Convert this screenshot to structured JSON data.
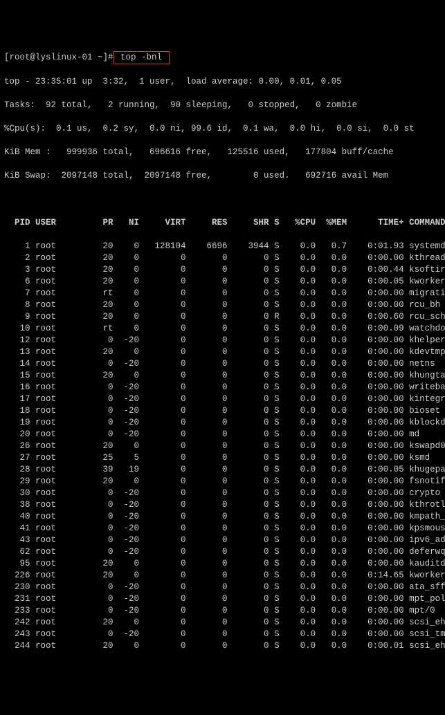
{
  "colors": {
    "bg": "#000000",
    "fg": "#cccccc",
    "highlight_border": "#ff2a2a",
    "inverse_bg": "#cccccc",
    "inverse_fg": "#000000"
  },
  "prompt": {
    "text": "[root@lyslinux-01 ~]#",
    "command": " top -bnl "
  },
  "summary": {
    "line1": "top - 23:35:01 up  3:32,  1 user,  load average: 0.00, 0.01, 0.05",
    "line2": "Tasks:  92 total,   2 running,  90 sleeping,   0 stopped,   0 zombie",
    "line3": "%Cpu(s):  0.1 us,  0.2 sy,  0.0 ni, 99.6 id,  0.1 wa,  0.0 hi,  0.0 si,  0.0 st",
    "line4": "KiB Mem :   999936 total,   696616 free,   125516 used,   177804 buff/cache",
    "line5": "KiB Swap:  2097148 total,  2097148 free,        0 used.   692716 avail Mem "
  },
  "columns": {
    "labels": [
      "PID",
      "USER",
      "PR",
      "NI",
      "VIRT",
      "RES",
      "SHR",
      "S",
      "%CPU",
      "%MEM",
      "TIME+",
      "COMMAND"
    ],
    "widths": [
      5,
      9,
      5,
      4,
      8,
      7,
      7,
      2,
      5,
      5,
      10,
      1
    ],
    "aligns": [
      "r",
      "l",
      "r",
      "r",
      "r",
      "r",
      "r",
      "l",
      "r",
      "r",
      "r",
      "l"
    ]
  },
  "processes": [
    {
      "pid": "1",
      "user": "root",
      "pr": "20",
      "ni": "0",
      "virt": "128104",
      "res": "6696",
      "shr": "3944",
      "s": "S",
      "cpu": "0.0",
      "mem": "0.7",
      "time": "0:01.93",
      "cmd": "systemd"
    },
    {
      "pid": "2",
      "user": "root",
      "pr": "20",
      "ni": "0",
      "virt": "0",
      "res": "0",
      "shr": "0",
      "s": "S",
      "cpu": "0.0",
      "mem": "0.0",
      "time": "0:00.00",
      "cmd": "kthreadd"
    },
    {
      "pid": "3",
      "user": "root",
      "pr": "20",
      "ni": "0",
      "virt": "0",
      "res": "0",
      "shr": "0",
      "s": "S",
      "cpu": "0.0",
      "mem": "0.0",
      "time": "0:00.44",
      "cmd": "ksoftirqd/0"
    },
    {
      "pid": "6",
      "user": "root",
      "pr": "20",
      "ni": "0",
      "virt": "0",
      "res": "0",
      "shr": "0",
      "s": "S",
      "cpu": "0.0",
      "mem": "0.0",
      "time": "0:00.05",
      "cmd": "kworker/u2+"
    },
    {
      "pid": "7",
      "user": "root",
      "pr": "rt",
      "ni": "0",
      "virt": "0",
      "res": "0",
      "shr": "0",
      "s": "S",
      "cpu": "0.0",
      "mem": "0.0",
      "time": "0:00.00",
      "cmd": "migration/0"
    },
    {
      "pid": "8",
      "user": "root",
      "pr": "20",
      "ni": "0",
      "virt": "0",
      "res": "0",
      "shr": "0",
      "s": "S",
      "cpu": "0.0",
      "mem": "0.0",
      "time": "0:00.00",
      "cmd": "rcu_bh"
    },
    {
      "pid": "9",
      "user": "root",
      "pr": "20",
      "ni": "0",
      "virt": "0",
      "res": "0",
      "shr": "0",
      "s": "R",
      "cpu": "0.0",
      "mem": "0.0",
      "time": "0:00.60",
      "cmd": "rcu_sched"
    },
    {
      "pid": "10",
      "user": "root",
      "pr": "rt",
      "ni": "0",
      "virt": "0",
      "res": "0",
      "shr": "0",
      "s": "S",
      "cpu": "0.0",
      "mem": "0.0",
      "time": "0:00.09",
      "cmd": "watchdog/0"
    },
    {
      "pid": "12",
      "user": "root",
      "pr": "0",
      "ni": "-20",
      "virt": "0",
      "res": "0",
      "shr": "0",
      "s": "S",
      "cpu": "0.0",
      "mem": "0.0",
      "time": "0:00.00",
      "cmd": "khelper"
    },
    {
      "pid": "13",
      "user": "root",
      "pr": "20",
      "ni": "0",
      "virt": "0",
      "res": "0",
      "shr": "0",
      "s": "S",
      "cpu": "0.0",
      "mem": "0.0",
      "time": "0:00.00",
      "cmd": "kdevtmpfs"
    },
    {
      "pid": "14",
      "user": "root",
      "pr": "0",
      "ni": "-20",
      "virt": "0",
      "res": "0",
      "shr": "0",
      "s": "S",
      "cpu": "0.0",
      "mem": "0.0",
      "time": "0:00.00",
      "cmd": "netns"
    },
    {
      "pid": "15",
      "user": "root",
      "pr": "20",
      "ni": "0",
      "virt": "0",
      "res": "0",
      "shr": "0",
      "s": "S",
      "cpu": "0.0",
      "mem": "0.0",
      "time": "0:00.00",
      "cmd": "khungtaskd"
    },
    {
      "pid": "16",
      "user": "root",
      "pr": "0",
      "ni": "-20",
      "virt": "0",
      "res": "0",
      "shr": "0",
      "s": "S",
      "cpu": "0.0",
      "mem": "0.0",
      "time": "0:00.00",
      "cmd": "writeback"
    },
    {
      "pid": "17",
      "user": "root",
      "pr": "0",
      "ni": "-20",
      "virt": "0",
      "res": "0",
      "shr": "0",
      "s": "S",
      "cpu": "0.0",
      "mem": "0.0",
      "time": "0:00.00",
      "cmd": "kintegrityd"
    },
    {
      "pid": "18",
      "user": "root",
      "pr": "0",
      "ni": "-20",
      "virt": "0",
      "res": "0",
      "shr": "0",
      "s": "S",
      "cpu": "0.0",
      "mem": "0.0",
      "time": "0:00.00",
      "cmd": "bioset"
    },
    {
      "pid": "19",
      "user": "root",
      "pr": "0",
      "ni": "-20",
      "virt": "0",
      "res": "0",
      "shr": "0",
      "s": "S",
      "cpu": "0.0",
      "mem": "0.0",
      "time": "0:00.00",
      "cmd": "kblockd"
    },
    {
      "pid": "20",
      "user": "root",
      "pr": "0",
      "ni": "-20",
      "virt": "0",
      "res": "0",
      "shr": "0",
      "s": "S",
      "cpu": "0.0",
      "mem": "0.0",
      "time": "0:00.00",
      "cmd": "md"
    },
    {
      "pid": "26",
      "user": "root",
      "pr": "20",
      "ni": "0",
      "virt": "0",
      "res": "0",
      "shr": "0",
      "s": "S",
      "cpu": "0.0",
      "mem": "0.0",
      "time": "0:00.00",
      "cmd": "kswapd0"
    },
    {
      "pid": "27",
      "user": "root",
      "pr": "25",
      "ni": "5",
      "virt": "0",
      "res": "0",
      "shr": "0",
      "s": "S",
      "cpu": "0.0",
      "mem": "0.0",
      "time": "0:00.00",
      "cmd": "ksmd"
    },
    {
      "pid": "28",
      "user": "root",
      "pr": "39",
      "ni": "19",
      "virt": "0",
      "res": "0",
      "shr": "0",
      "s": "S",
      "cpu": "0.0",
      "mem": "0.0",
      "time": "0:00.05",
      "cmd": "khugepaged"
    },
    {
      "pid": "29",
      "user": "root",
      "pr": "20",
      "ni": "0",
      "virt": "0",
      "res": "0",
      "shr": "0",
      "s": "S",
      "cpu": "0.0",
      "mem": "0.0",
      "time": "0:00.00",
      "cmd": "fsnotify_m+"
    },
    {
      "pid": "30",
      "user": "root",
      "pr": "0",
      "ni": "-20",
      "virt": "0",
      "res": "0",
      "shr": "0",
      "s": "S",
      "cpu": "0.0",
      "mem": "0.0",
      "time": "0:00.00",
      "cmd": "crypto"
    },
    {
      "pid": "38",
      "user": "root",
      "pr": "0",
      "ni": "-20",
      "virt": "0",
      "res": "0",
      "shr": "0",
      "s": "S",
      "cpu": "0.0",
      "mem": "0.0",
      "time": "0:00.00",
      "cmd": "kthrotld"
    },
    {
      "pid": "40",
      "user": "root",
      "pr": "0",
      "ni": "-20",
      "virt": "0",
      "res": "0",
      "shr": "0",
      "s": "S",
      "cpu": "0.0",
      "mem": "0.0",
      "time": "0:00.00",
      "cmd": "kmpath_rda+"
    },
    {
      "pid": "41",
      "user": "root",
      "pr": "0",
      "ni": "-20",
      "virt": "0",
      "res": "0",
      "shr": "0",
      "s": "S",
      "cpu": "0.0",
      "mem": "0.0",
      "time": "0:00.00",
      "cmd": "kpsmoused"
    },
    {
      "pid": "43",
      "user": "root",
      "pr": "0",
      "ni": "-20",
      "virt": "0",
      "res": "0",
      "shr": "0",
      "s": "S",
      "cpu": "0.0",
      "mem": "0.0",
      "time": "0:00.00",
      "cmd": "ipv6_addrc+"
    },
    {
      "pid": "62",
      "user": "root",
      "pr": "0",
      "ni": "-20",
      "virt": "0",
      "res": "0",
      "shr": "0",
      "s": "S",
      "cpu": "0.0",
      "mem": "0.0",
      "time": "0:00.00",
      "cmd": "deferwq"
    },
    {
      "pid": "95",
      "user": "root",
      "pr": "20",
      "ni": "0",
      "virt": "0",
      "res": "0",
      "shr": "0",
      "s": "S",
      "cpu": "0.0",
      "mem": "0.0",
      "time": "0:00.00",
      "cmd": "kauditd"
    },
    {
      "pid": "226",
      "user": "root",
      "pr": "20",
      "ni": "0",
      "virt": "0",
      "res": "0",
      "shr": "0",
      "s": "S",
      "cpu": "0.0",
      "mem": "0.0",
      "time": "0:14.65",
      "cmd": "kworker/0:3"
    },
    {
      "pid": "230",
      "user": "root",
      "pr": "0",
      "ni": "-20",
      "virt": "0",
      "res": "0",
      "shr": "0",
      "s": "S",
      "cpu": "0.0",
      "mem": "0.0",
      "time": "0:00.00",
      "cmd": "ata_sff"
    },
    {
      "pid": "231",
      "user": "root",
      "pr": "0",
      "ni": "-20",
      "virt": "0",
      "res": "0",
      "shr": "0",
      "s": "S",
      "cpu": "0.0",
      "mem": "0.0",
      "time": "0:00.00",
      "cmd": "mpt_poll_0"
    },
    {
      "pid": "233",
      "user": "root",
      "pr": "0",
      "ni": "-20",
      "virt": "0",
      "res": "0",
      "shr": "0",
      "s": "S",
      "cpu": "0.0",
      "mem": "0.0",
      "time": "0:00.00",
      "cmd": "mpt/0"
    },
    {
      "pid": "242",
      "user": "root",
      "pr": "20",
      "ni": "0",
      "virt": "0",
      "res": "0",
      "shr": "0",
      "s": "S",
      "cpu": "0.0",
      "mem": "0.0",
      "time": "0:00.00",
      "cmd": "scsi_eh_0"
    },
    {
      "pid": "243",
      "user": "root",
      "pr": "0",
      "ni": "-20",
      "virt": "0",
      "res": "0",
      "shr": "0",
      "s": "S",
      "cpu": "0.0",
      "mem": "0.0",
      "time": "0:00.00",
      "cmd": "scsi_tmf_0"
    },
    {
      "pid": "244",
      "user": "root",
      "pr": "20",
      "ni": "0",
      "virt": "0",
      "res": "0",
      "shr": "0",
      "s": "S",
      "cpu": "0.0",
      "mem": "0.0",
      "time": "0:00.01",
      "cmd": "scsi_eh_1"
    }
  ]
}
